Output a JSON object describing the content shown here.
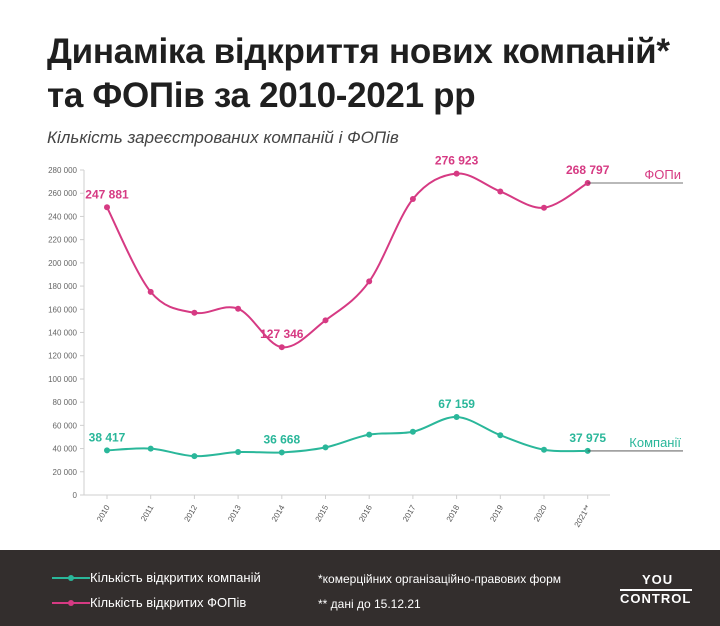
{
  "title": {
    "line1": "Динаміка відкриття нових компаній*",
    "line2": "та ФОПів за 2010-2021 рр"
  },
  "subtitle": "Кількість зареєстрованих компаній і ФОПів",
  "chart_data": {
    "type": "line",
    "title": "Динаміка відкриття нових компаній* та ФОПів за 2010-2021 рр",
    "ylabel": "Кількість зареєстрованих компаній і ФОПів",
    "x": [
      "2010",
      "2011",
      "2012",
      "2013",
      "2014",
      "2015",
      "2016",
      "2017",
      "2018",
      "2019",
      "2020",
      "2021**"
    ],
    "y_ticks": [
      "0",
      "20 000",
      "40 000",
      "60 000",
      "80 000",
      "100 000",
      "120 000",
      "140 000",
      "160 000",
      "180 000",
      "200 000",
      "220 000",
      "240 000",
      "260 000",
      "280 000"
    ],
    "ylim": [
      0,
      280000
    ],
    "grid": false,
    "series": [
      {
        "name": "ФОПи",
        "legend": "Кількість відкритих ФОПів",
        "color": "#d63a83",
        "values": [
          247881,
          175000,
          157000,
          160500,
          127346,
          150500,
          184000,
          255000,
          276923,
          261500,
          247500,
          268797
        ],
        "labels": [
          {
            "index": 0,
            "text": "247 881"
          },
          {
            "index": 4,
            "text": "127 346"
          },
          {
            "index": 8,
            "text": "276 923"
          },
          {
            "index": 11,
            "text": "268 797"
          }
        ]
      },
      {
        "name": "Компанії",
        "legend": "Кількість відкритих компаній",
        "color": "#2ab79a",
        "values": [
          38417,
          40000,
          33500,
          37000,
          36668,
          41000,
          52000,
          54500,
          67159,
          51500,
          39000,
          37975
        ],
        "labels": [
          {
            "index": 0,
            "text": "38 417"
          },
          {
            "index": 4,
            "text": "36 668"
          },
          {
            "index": 8,
            "text": "67 159"
          },
          {
            "index": 11,
            "text": "37 975"
          }
        ]
      }
    ]
  },
  "footer": {
    "legend_companies": "Кількість відкритих компаній",
    "legend_fops": "Кількість відкритих ФОПів",
    "note1": "*комерційних організаційно-правових форм",
    "note2": "** дані до 15.12.21",
    "logo_top": "YOU",
    "logo_bottom": "CONTROL"
  },
  "colors": {
    "fop": "#d63a83",
    "company": "#2ab79a",
    "footer_bg": "#332e2d"
  }
}
